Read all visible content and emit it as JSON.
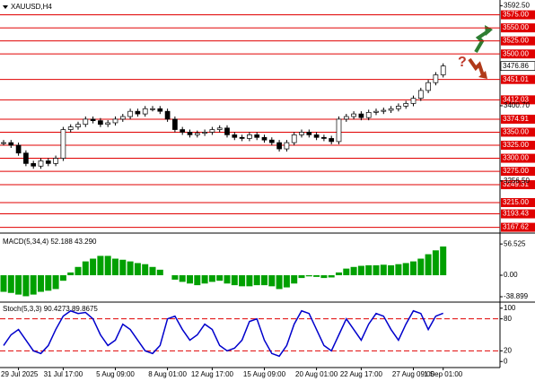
{
  "chart_data": [
    {
      "type": "candlestick",
      "title": "XAUUSD,H4",
      "categories": [
        null,
        null,
        "29 Jul 2025",
        null,
        null,
        null,
        null,
        null,
        "31 Jul 17:00",
        null,
        null,
        null,
        null,
        null,
        null,
        "5 Aug 09:00",
        null,
        null,
        null,
        null,
        null,
        null,
        "8 Aug 01:00",
        null,
        null,
        null,
        null,
        null,
        "12 Aug 17:00",
        null,
        null,
        null,
        null,
        null,
        null,
        "15 Aug 09:00",
        null,
        null,
        null,
        null,
        null,
        null,
        "20 Aug 01:00",
        null,
        null,
        null,
        null,
        null,
        "22 Aug 17:00",
        null,
        null,
        null,
        null,
        null,
        null,
        "27 Aug 09:00",
        null,
        null,
        null,
        "1 Sep 01:00"
      ],
      "values": [
        3330,
        3325,
        3310,
        3290,
        3285,
        3295,
        3290,
        3300,
        3355,
        3360,
        3365,
        3375,
        3372,
        3365,
        3368,
        3375,
        3380,
        3390,
        3385,
        3395,
        3395,
        3390,
        3375,
        3355,
        3350,
        3345,
        3348,
        3350,
        3355,
        3358,
        3345,
        3340,
        3338,
        3345,
        3340,
        3335,
        3330,
        3318,
        3330,
        3345,
        3350,
        3345,
        3340,
        3338,
        3332,
        3375,
        3380,
        3385,
        3378,
        3388,
        3390,
        3392,
        3395,
        3400,
        3405,
        3415,
        3430,
        3445,
        3460,
        3476.86
      ],
      "up_color": "#ffffff",
      "down_color": "#000000",
      "levels": [
        {
          "value": 3575,
          "label": "3575.00"
        },
        {
          "value": 3550,
          "label": "3550.00"
        },
        {
          "value": 3525,
          "label": "3525.00"
        },
        {
          "value": 3500,
          "label": "3500.00"
        },
        3451.01,
        3412.03,
        3374.91,
        {
          "value": 3350,
          "label": "3350.00"
        },
        {
          "value": 3325,
          "label": "3325.00"
        },
        {
          "value": 3300,
          "label": "3300.00"
        },
        {
          "value": 3275,
          "label": "3275.00"
        },
        3249.31,
        {
          "value": 3215,
          "label": "3215.00"
        },
        3193.43,
        3167.62
      ],
      "level_color": "#e00000",
      "ylim": [
        3160,
        3600
      ],
      "yticks": [
        {
          "value": 3592.5,
          "label": "3592.50"
        },
        {
          "value": 3400.7,
          "label": "3400.70"
        },
        {
          "value": 3256.5,
          "label": "3256.50"
        }
      ]
    },
    {
      "type": "bar",
      "title": "MACD(5,34,4) 52.188 43.290",
      "values": [
        -30,
        -32,
        -35,
        -38,
        -35,
        -30,
        -28,
        -25,
        -10,
        5,
        15,
        25,
        30,
        35,
        35,
        30,
        28,
        25,
        22,
        20,
        15,
        10,
        0,
        -8,
        -12,
        -15,
        -18,
        -15,
        -12,
        -10,
        -15,
        -18,
        -20,
        -20,
        -18,
        -18,
        -20,
        -25,
        -22,
        -15,
        -5,
        -2,
        -3,
        -5,
        -4,
        5,
        12,
        15,
        17,
        18,
        18,
        19,
        18,
        20,
        22,
        25,
        30,
        38,
        45,
        52
      ],
      "color": "#00a000",
      "ylim": [
        -47,
        73
      ],
      "yticks": [
        56.525,
        {
          "value": 0,
          "label": "0.00"
        },
        -38.899
      ]
    },
    {
      "type": "line",
      "title": "Stoch(5,3,3) 90.4273 89.8675",
      "values": [
        30,
        50,
        60,
        40,
        20,
        15,
        30,
        60,
        85,
        95,
        90,
        92,
        80,
        50,
        30,
        40,
        70,
        60,
        40,
        20,
        15,
        30,
        80,
        85,
        60,
        40,
        50,
        70,
        60,
        30,
        20,
        25,
        40,
        75,
        80,
        40,
        15,
        10,
        30,
        70,
        95,
        90,
        60,
        30,
        20,
        50,
        80,
        60,
        40,
        70,
        90,
        85,
        60,
        40,
        70,
        95,
        90,
        60,
        85,
        90.4273
      ],
      "color": "#0000cc",
      "ylim": [
        -8,
        108
      ],
      "yticks": [
        100,
        80,
        20,
        0
      ],
      "levels": [
        80,
        20
      ],
      "level_color": "#e00000"
    }
  ]
}
